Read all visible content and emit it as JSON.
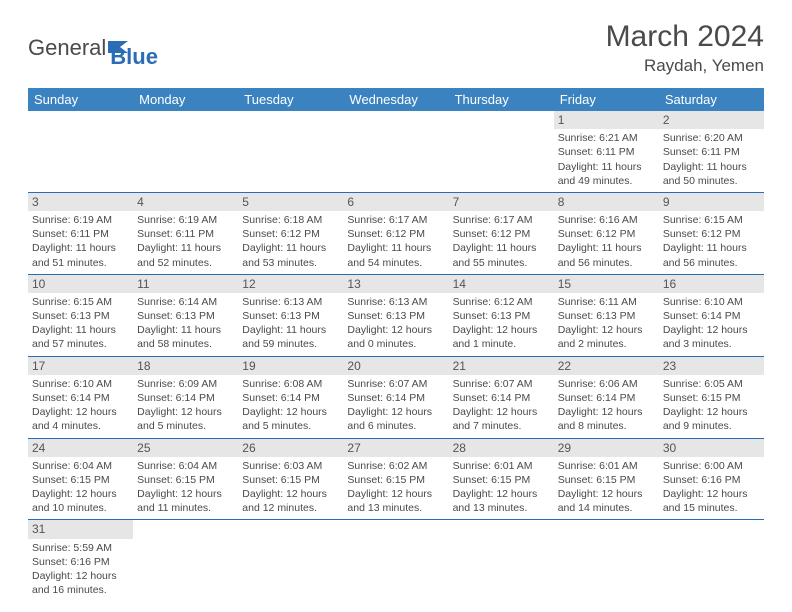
{
  "brand": {
    "name1": "General",
    "name2": "Blue"
  },
  "title": "March 2024",
  "location": "Raydah, Yemen",
  "colors": {
    "header_bg": "#3b83c0",
    "header_text": "#ffffff",
    "row_border": "#2a6db4",
    "daynum_bg": "#e6e6e6",
    "text": "#4a4a4a"
  },
  "weekdays": [
    "Sunday",
    "Monday",
    "Tuesday",
    "Wednesday",
    "Thursday",
    "Friday",
    "Saturday"
  ],
  "weeks": [
    [
      null,
      null,
      null,
      null,
      null,
      {
        "d": "1",
        "sr": "Sunrise: 6:21 AM",
        "ss": "Sunset: 6:11 PM",
        "dl": "Daylight: 11 hours and 49 minutes."
      },
      {
        "d": "2",
        "sr": "Sunrise: 6:20 AM",
        "ss": "Sunset: 6:11 PM",
        "dl": "Daylight: 11 hours and 50 minutes."
      }
    ],
    [
      {
        "d": "3",
        "sr": "Sunrise: 6:19 AM",
        "ss": "Sunset: 6:11 PM",
        "dl": "Daylight: 11 hours and 51 minutes."
      },
      {
        "d": "4",
        "sr": "Sunrise: 6:19 AM",
        "ss": "Sunset: 6:11 PM",
        "dl": "Daylight: 11 hours and 52 minutes."
      },
      {
        "d": "5",
        "sr": "Sunrise: 6:18 AM",
        "ss": "Sunset: 6:12 PM",
        "dl": "Daylight: 11 hours and 53 minutes."
      },
      {
        "d": "6",
        "sr": "Sunrise: 6:17 AM",
        "ss": "Sunset: 6:12 PM",
        "dl": "Daylight: 11 hours and 54 minutes."
      },
      {
        "d": "7",
        "sr": "Sunrise: 6:17 AM",
        "ss": "Sunset: 6:12 PM",
        "dl": "Daylight: 11 hours and 55 minutes."
      },
      {
        "d": "8",
        "sr": "Sunrise: 6:16 AM",
        "ss": "Sunset: 6:12 PM",
        "dl": "Daylight: 11 hours and 56 minutes."
      },
      {
        "d": "9",
        "sr": "Sunrise: 6:15 AM",
        "ss": "Sunset: 6:12 PM",
        "dl": "Daylight: 11 hours and 56 minutes."
      }
    ],
    [
      {
        "d": "10",
        "sr": "Sunrise: 6:15 AM",
        "ss": "Sunset: 6:13 PM",
        "dl": "Daylight: 11 hours and 57 minutes."
      },
      {
        "d": "11",
        "sr": "Sunrise: 6:14 AM",
        "ss": "Sunset: 6:13 PM",
        "dl": "Daylight: 11 hours and 58 minutes."
      },
      {
        "d": "12",
        "sr": "Sunrise: 6:13 AM",
        "ss": "Sunset: 6:13 PM",
        "dl": "Daylight: 11 hours and 59 minutes."
      },
      {
        "d": "13",
        "sr": "Sunrise: 6:13 AM",
        "ss": "Sunset: 6:13 PM",
        "dl": "Daylight: 12 hours and 0 minutes."
      },
      {
        "d": "14",
        "sr": "Sunrise: 6:12 AM",
        "ss": "Sunset: 6:13 PM",
        "dl": "Daylight: 12 hours and 1 minute."
      },
      {
        "d": "15",
        "sr": "Sunrise: 6:11 AM",
        "ss": "Sunset: 6:13 PM",
        "dl": "Daylight: 12 hours and 2 minutes."
      },
      {
        "d": "16",
        "sr": "Sunrise: 6:10 AM",
        "ss": "Sunset: 6:14 PM",
        "dl": "Daylight: 12 hours and 3 minutes."
      }
    ],
    [
      {
        "d": "17",
        "sr": "Sunrise: 6:10 AM",
        "ss": "Sunset: 6:14 PM",
        "dl": "Daylight: 12 hours and 4 minutes."
      },
      {
        "d": "18",
        "sr": "Sunrise: 6:09 AM",
        "ss": "Sunset: 6:14 PM",
        "dl": "Daylight: 12 hours and 5 minutes."
      },
      {
        "d": "19",
        "sr": "Sunrise: 6:08 AM",
        "ss": "Sunset: 6:14 PM",
        "dl": "Daylight: 12 hours and 5 minutes."
      },
      {
        "d": "20",
        "sr": "Sunrise: 6:07 AM",
        "ss": "Sunset: 6:14 PM",
        "dl": "Daylight: 12 hours and 6 minutes."
      },
      {
        "d": "21",
        "sr": "Sunrise: 6:07 AM",
        "ss": "Sunset: 6:14 PM",
        "dl": "Daylight: 12 hours and 7 minutes."
      },
      {
        "d": "22",
        "sr": "Sunrise: 6:06 AM",
        "ss": "Sunset: 6:14 PM",
        "dl": "Daylight: 12 hours and 8 minutes."
      },
      {
        "d": "23",
        "sr": "Sunrise: 6:05 AM",
        "ss": "Sunset: 6:15 PM",
        "dl": "Daylight: 12 hours and 9 minutes."
      }
    ],
    [
      {
        "d": "24",
        "sr": "Sunrise: 6:04 AM",
        "ss": "Sunset: 6:15 PM",
        "dl": "Daylight: 12 hours and 10 minutes."
      },
      {
        "d": "25",
        "sr": "Sunrise: 6:04 AM",
        "ss": "Sunset: 6:15 PM",
        "dl": "Daylight: 12 hours and 11 minutes."
      },
      {
        "d": "26",
        "sr": "Sunrise: 6:03 AM",
        "ss": "Sunset: 6:15 PM",
        "dl": "Daylight: 12 hours and 12 minutes."
      },
      {
        "d": "27",
        "sr": "Sunrise: 6:02 AM",
        "ss": "Sunset: 6:15 PM",
        "dl": "Daylight: 12 hours and 13 minutes."
      },
      {
        "d": "28",
        "sr": "Sunrise: 6:01 AM",
        "ss": "Sunset: 6:15 PM",
        "dl": "Daylight: 12 hours and 13 minutes."
      },
      {
        "d": "29",
        "sr": "Sunrise: 6:01 AM",
        "ss": "Sunset: 6:15 PM",
        "dl": "Daylight: 12 hours and 14 minutes."
      },
      {
        "d": "30",
        "sr": "Sunrise: 6:00 AM",
        "ss": "Sunset: 6:16 PM",
        "dl": "Daylight: 12 hours and 15 minutes."
      }
    ],
    [
      {
        "d": "31",
        "sr": "Sunrise: 5:59 AM",
        "ss": "Sunset: 6:16 PM",
        "dl": "Daylight: 12 hours and 16 minutes."
      },
      null,
      null,
      null,
      null,
      null,
      null
    ]
  ]
}
